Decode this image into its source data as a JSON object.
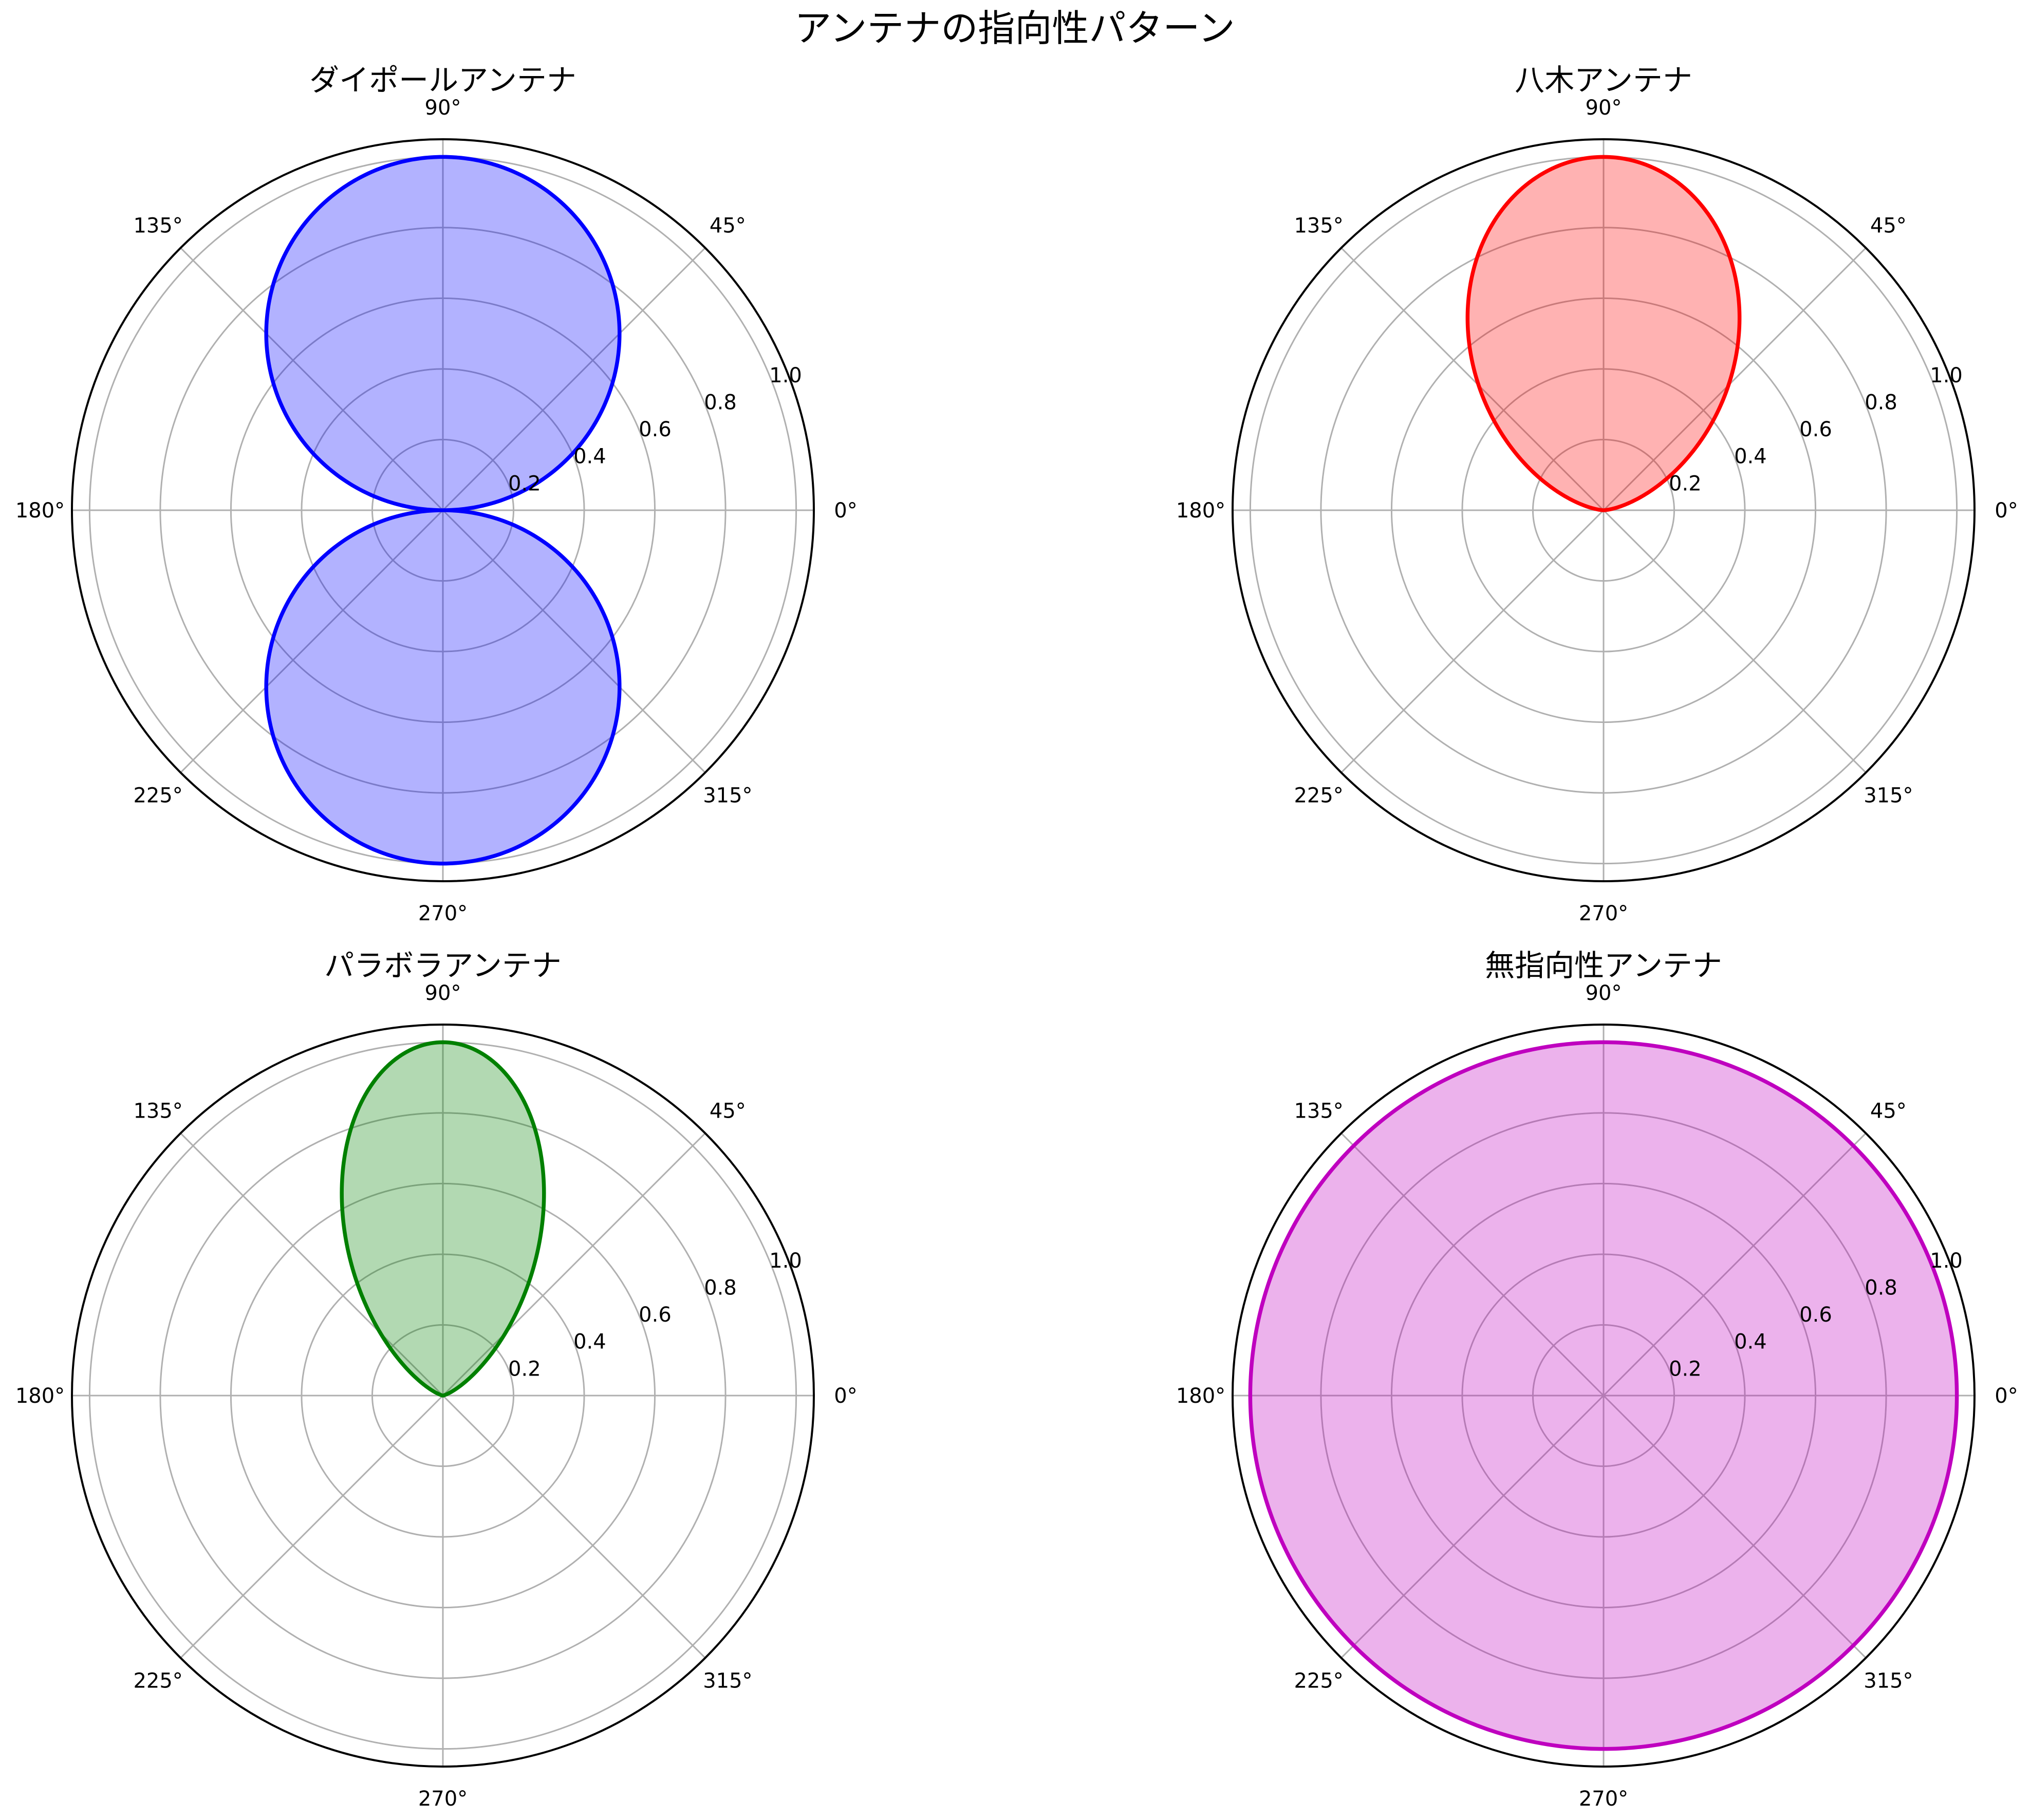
{
  "figure": {
    "title": "アンテナの指向性パターン"
  },
  "chart_data": [
    {
      "type": "polar-area",
      "title": "ダイポールアンテナ",
      "function": "abs(sin(theta))",
      "series": [
        {
          "color": "#0000ff",
          "fill_alpha": 0.3
        }
      ],
      "theta_deg": [
        0,
        10,
        20,
        30,
        40,
        45,
        50,
        60,
        70,
        80,
        90,
        100,
        110,
        120,
        130,
        135,
        140,
        150,
        160,
        170,
        180,
        190,
        200,
        210,
        220,
        225,
        230,
        240,
        250,
        260,
        270,
        280,
        290,
        300,
        310,
        315,
        320,
        330,
        340,
        350
      ],
      "r": [
        0.0,
        0.174,
        0.342,
        0.5,
        0.643,
        0.707,
        0.766,
        0.866,
        0.94,
        0.985,
        1.0,
        0.985,
        0.94,
        0.866,
        0.766,
        0.707,
        0.643,
        0.5,
        0.342,
        0.174,
        0.0,
        0.174,
        0.342,
        0.5,
        0.643,
        0.707,
        0.766,
        0.866,
        0.94,
        0.985,
        1.0,
        0.985,
        0.94,
        0.866,
        0.766,
        0.707,
        0.643,
        0.5,
        0.342,
        0.174
      ],
      "rlim": [
        0,
        1.05
      ],
      "r_ticks": [
        "0.2",
        "0.4",
        "0.6",
        "0.8",
        "1.0"
      ],
      "theta_ticks": [
        "0°",
        "45°",
        "90°",
        "135°",
        "180°",
        "225°",
        "270°",
        "315°"
      ],
      "grid": true
    },
    {
      "type": "polar-area",
      "title": "八木アンテナ",
      "function": "sin(theta)^2 for 0<=theta<=180, 0 otherwise",
      "series": [
        {
          "color": "#ff0000",
          "fill_alpha": 0.3
        }
      ],
      "theta_deg": [
        0,
        10,
        20,
        30,
        40,
        45,
        50,
        60,
        70,
        80,
        90,
        100,
        110,
        120,
        130,
        135,
        140,
        150,
        160,
        170,
        180,
        270
      ],
      "r": [
        0.0,
        0.03,
        0.117,
        0.25,
        0.413,
        0.5,
        0.587,
        0.75,
        0.883,
        0.97,
        1.0,
        0.97,
        0.883,
        0.75,
        0.587,
        0.5,
        0.413,
        0.25,
        0.117,
        0.03,
        0.0,
        0.0
      ],
      "rlim": [
        0,
        1.05
      ],
      "r_ticks": [
        "0.2",
        "0.4",
        "0.6",
        "0.8",
        "1.0"
      ],
      "theta_ticks": [
        "0°",
        "45°",
        "90°",
        "135°",
        "180°",
        "225°",
        "270°",
        "315°"
      ],
      "grid": true
    },
    {
      "type": "polar-area",
      "title": "パラボラアンテナ",
      "function": "sin(theta)^4 for 0<=theta<=180, 0 otherwise",
      "series": [
        {
          "color": "#008000",
          "fill_alpha": 0.3
        }
      ],
      "theta_deg": [
        0,
        10,
        20,
        30,
        40,
        45,
        50,
        60,
        70,
        80,
        90,
        100,
        110,
        120,
        130,
        135,
        140,
        150,
        160,
        170,
        180,
        270
      ],
      "r": [
        0.0,
        0.001,
        0.014,
        0.063,
        0.171,
        0.25,
        0.344,
        0.563,
        0.78,
        0.941,
        1.0,
        0.941,
        0.78,
        0.563,
        0.344,
        0.25,
        0.171,
        0.063,
        0.014,
        0.001,
        0.0,
        0.0
      ],
      "rlim": [
        0,
        1.05
      ],
      "r_ticks": [
        "0.2",
        "0.4",
        "0.6",
        "0.8",
        "1.0"
      ],
      "theta_ticks": [
        "0°",
        "45°",
        "90°",
        "135°",
        "180°",
        "225°",
        "270°",
        "315°"
      ],
      "grid": true
    },
    {
      "type": "polar-area",
      "title": "無指向性アンテナ",
      "function": "1",
      "series": [
        {
          "color": "#bf00bf",
          "fill_alpha": 0.3
        }
      ],
      "theta_deg": [
        0,
        45,
        90,
        135,
        180,
        225,
        270,
        315
      ],
      "r": [
        1.0,
        1.0,
        1.0,
        1.0,
        1.0,
        1.0,
        1.0,
        1.0
      ],
      "rlim": [
        0,
        1.05
      ],
      "r_ticks": [
        "0.2",
        "0.4",
        "0.6",
        "0.8",
        "1.0"
      ],
      "theta_ticks": [
        "0°",
        "45°",
        "90°",
        "135°",
        "180°",
        "225°",
        "270°",
        "315°"
      ],
      "grid": true
    }
  ]
}
